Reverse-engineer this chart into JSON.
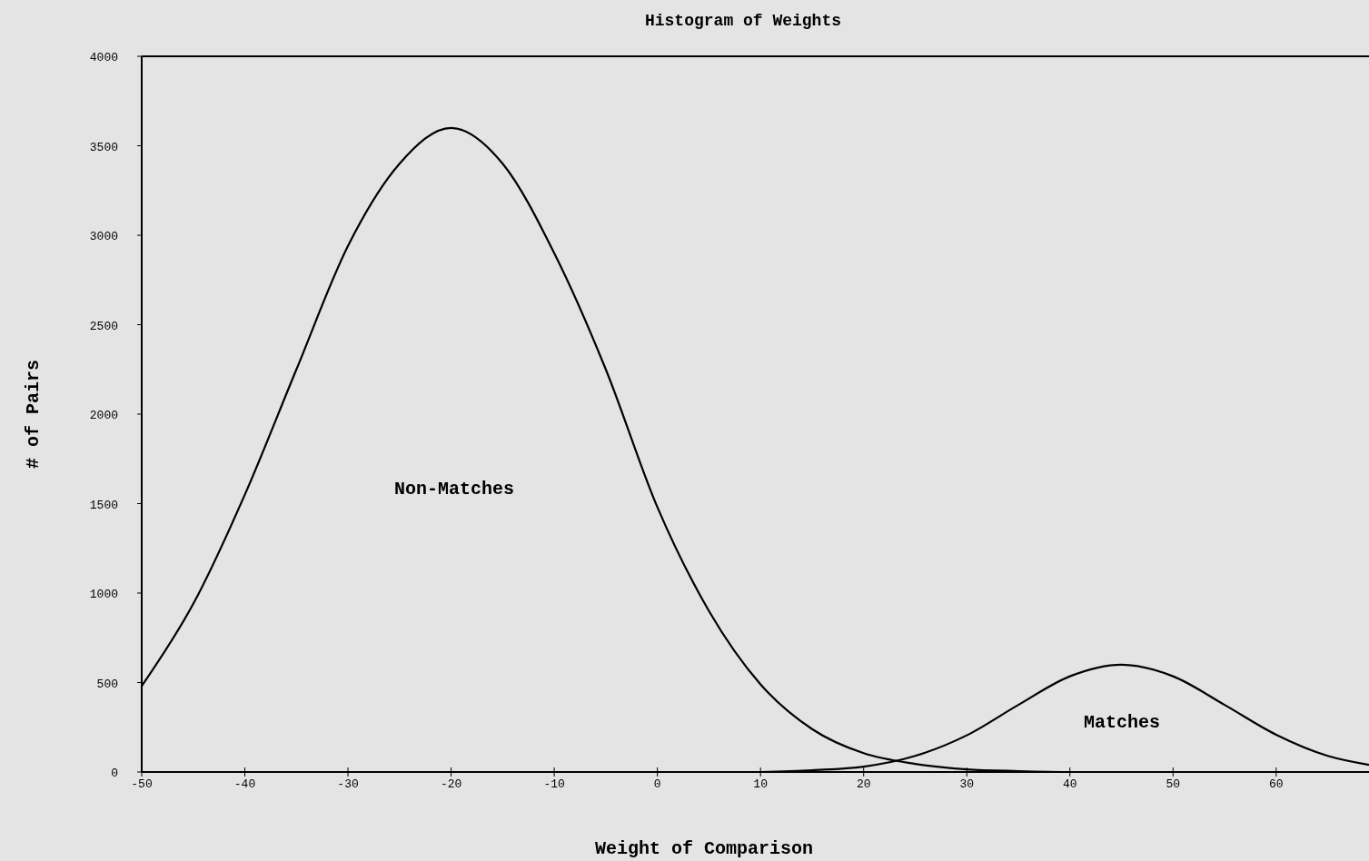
{
  "chart_data": {
    "type": "line",
    "title": "Histogram of Weights",
    "xlabel": "Weight of Comparison",
    "ylabel": "# of Pairs",
    "xlim": [
      -50,
      69
    ],
    "xticks": [
      -50,
      -40,
      -30,
      -20,
      -10,
      0,
      10,
      20,
      30,
      40,
      50,
      60
    ],
    "ylim": [
      0,
      4000
    ],
    "yticks": [
      0,
      500,
      1000,
      1500,
      2000,
      2500,
      3000,
      3500,
      4000
    ],
    "grid": false,
    "marker": "none",
    "line_style": "solid",
    "series": [
      {
        "color": "#000000",
        "x": [
          -50,
          -45,
          -40,
          -35,
          -30,
          -25,
          -20,
          -15,
          -10,
          -5,
          0,
          5,
          10,
          15,
          20,
          25,
          30,
          35,
          40,
          45,
          50,
          55,
          60,
          65,
          69
        ],
        "values": [
          480,
          940,
          1550,
          2250,
          2940,
          3400,
          3600,
          3400,
          2900,
          2250,
          1480,
          900,
          490,
          240,
          105,
          45,
          15,
          5,
          0,
          0,
          0,
          0,
          0,
          0,
          0
        ]
      },
      {
        "color": "#000000",
        "x": [
          10,
          15,
          20,
          25,
          30,
          35,
          40,
          45,
          50,
          55,
          60,
          65,
          69
        ],
        "values": [
          0,
          10,
          30,
          90,
          205,
          375,
          535,
          600,
          535,
          375,
          208,
          90,
          40
        ]
      }
    ],
    "annotations": [
      "Non-Matches",
      "Matches"
    ]
  }
}
